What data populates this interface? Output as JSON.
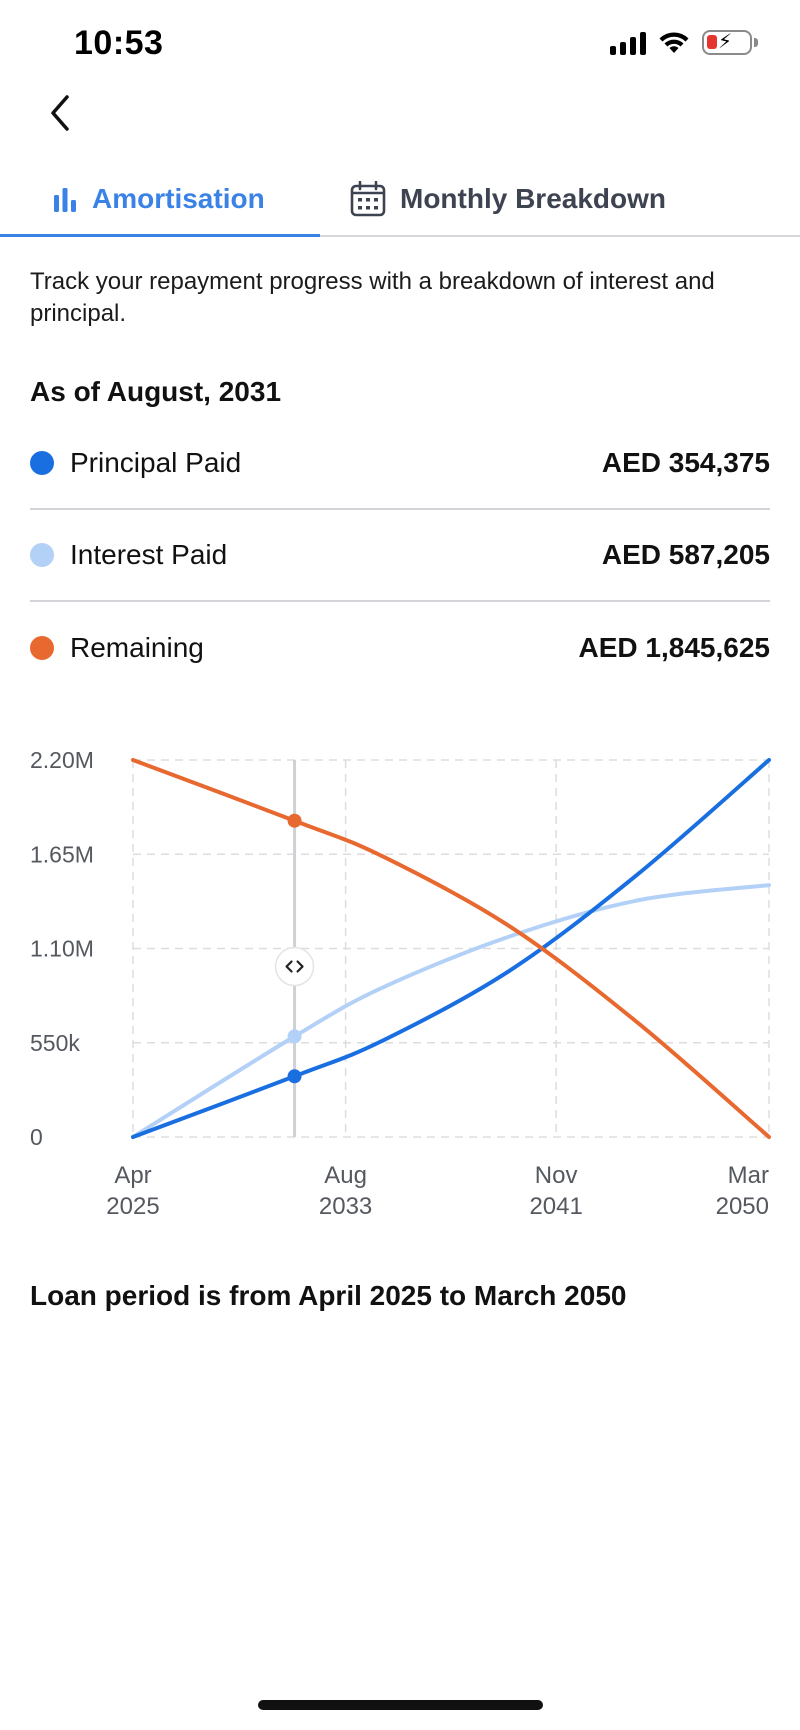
{
  "status": {
    "time": "10:53"
  },
  "tabs": [
    {
      "label": "Amortisation",
      "icon": "bar-chart-icon",
      "active": true
    },
    {
      "label": "Monthly Breakdown",
      "icon": "calendar-icon",
      "active": false
    }
  ],
  "description": "Track your repayment progress with a breakdown of interest and principal.",
  "as_of": "As of August, 2031",
  "legend": [
    {
      "label": "Principal Paid",
      "value": "AED 354,375",
      "color": "#1a6fe0"
    },
    {
      "label": "Interest Paid",
      "value": "AED 587,205",
      "color": "#b3d0f7"
    },
    {
      "label": "Remaining",
      "value": "AED 1,845,625",
      "color": "#e8692f"
    }
  ],
  "chart_data": {
    "type": "line",
    "x_range": [
      2025.25,
      2050.17
    ],
    "ylim": [
      0,
      2200000
    ],
    "y_ticks": [
      {
        "value": 0,
        "label": "0"
      },
      {
        "value": 550000,
        "label": "550k"
      },
      {
        "value": 1100000,
        "label": "1.10M"
      },
      {
        "value": 1650000,
        "label": "1.65M"
      },
      {
        "value": 2200000,
        "label": "2.20M"
      }
    ],
    "x_ticks": [
      {
        "value": 2025.25,
        "month": "Apr",
        "year": "2025"
      },
      {
        "value": 2033.58,
        "month": "Aug",
        "year": "2033"
      },
      {
        "value": 2041.83,
        "month": "Nov",
        "year": "2041"
      },
      {
        "value": 2050.17,
        "month": "Mar",
        "year": "2050"
      }
    ],
    "series": [
      {
        "name": "Principal Paid",
        "color": "#1a6fe0",
        "points": [
          [
            2025.25,
            0
          ],
          [
            2031.58,
            354375
          ],
          [
            2035.0,
            560000
          ],
          [
            2040.0,
            970000
          ],
          [
            2045.0,
            1530000
          ],
          [
            2050.17,
            2200000
          ]
        ]
      },
      {
        "name": "Interest Paid",
        "color": "#b3d0f7",
        "points": [
          [
            2025.25,
            0
          ],
          [
            2031.58,
            587205
          ],
          [
            2035.0,
            870000
          ],
          [
            2040.0,
            1170000
          ],
          [
            2045.0,
            1380000
          ],
          [
            2050.17,
            1470000
          ]
        ]
      },
      {
        "name": "Remaining",
        "color": "#e8692f",
        "points": [
          [
            2025.25,
            2200000
          ],
          [
            2031.58,
            1845625
          ],
          [
            2035.0,
            1640000
          ],
          [
            2040.0,
            1230000
          ],
          [
            2045.0,
            670000
          ],
          [
            2050.17,
            0
          ]
        ]
      }
    ],
    "marker_x": 2031.58,
    "grid": true
  },
  "footer_note": "Loan period is from April 2025 to March 2050"
}
